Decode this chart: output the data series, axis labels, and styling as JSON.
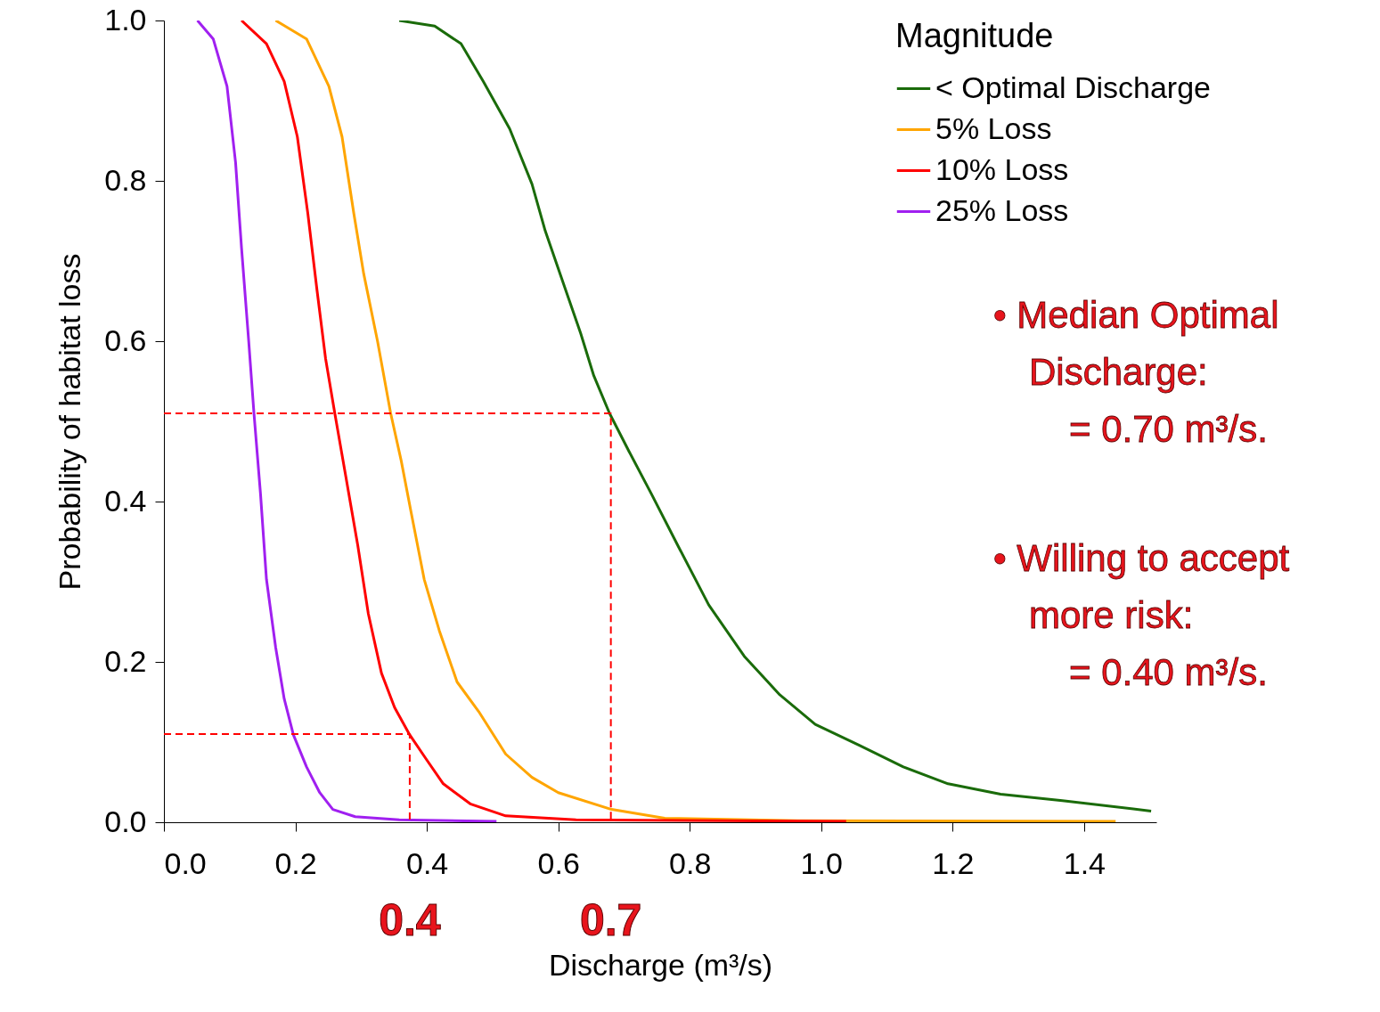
{
  "chart_data": {
    "type": "line",
    "xlabel": "Discharge (m³/s)",
    "ylabel": "Probability of habitat loss",
    "legend_title": "Magnitude",
    "legend": "top right",
    "grid": false,
    "line_style": "solid",
    "xlim": [
      0,
      1.51
    ],
    "ylim": [
      0,
      1
    ],
    "xticks": [
      {
        "value": 0,
        "label": "0.0"
      },
      0.2,
      0.4,
      0.6,
      0.8,
      {
        "value": 1,
        "label": "1.0"
      },
      1.2,
      1.4
    ],
    "yticks": [
      {
        "value": 0,
        "label": "0.0"
      },
      0.2,
      0.4,
      0.6,
      0.8,
      {
        "value": 1,
        "label": "1.0"
      }
    ],
    "series": [
      {
        "name": "< Optimal Discharge",
        "color": "#1a6b0a",
        "x": [
          0.358,
          0.412,
          0.452,
          0.486,
          0.526,
          0.56,
          0.58,
          0.607,
          0.634,
          0.654,
          0.678,
          0.708,
          0.742,
          0.782,
          0.829,
          0.883,
          0.937,
          0.991,
          1.058,
          1.125,
          1.193,
          1.273,
          1.367,
          1.502
        ],
        "values": [
          1.0,
          0.993,
          0.971,
          0.924,
          0.865,
          0.796,
          0.738,
          0.674,
          0.61,
          0.557,
          0.51,
          0.462,
          0.409,
          0.345,
          0.271,
          0.207,
          0.159,
          0.122,
          0.096,
          0.069,
          0.048,
          0.035,
          0.027,
          0.014
        ]
      },
      {
        "name": "5%   Loss",
        "color": "#ffa500",
        "x": [
          0.17,
          0.217,
          0.251,
          0.271,
          0.289,
          0.304,
          0.325,
          0.345,
          0.361,
          0.376,
          0.396,
          0.419,
          0.446,
          0.479,
          0.52,
          0.56,
          0.6,
          0.681,
          0.762,
          0.964,
          1.448
        ],
        "values": [
          1.0,
          0.977,
          0.918,
          0.855,
          0.759,
          0.684,
          0.6,
          0.51,
          0.451,
          0.387,
          0.303,
          0.239,
          0.175,
          0.138,
          0.085,
          0.056,
          0.037,
          0.016,
          0.005,
          0.002,
          0.001
        ]
      },
      {
        "name": "10% Loss",
        "color": "#ff0000",
        "x": [
          0.118,
          0.156,
          0.183,
          0.203,
          0.219,
          0.233,
          0.246,
          0.26,
          0.277,
          0.295,
          0.311,
          0.331,
          0.351,
          0.374,
          0.398,
          0.425,
          0.466,
          0.52,
          0.627,
          1.038
        ],
        "values": [
          1.0,
          0.971,
          0.924,
          0.855,
          0.759,
          0.663,
          0.578,
          0.51,
          0.43,
          0.345,
          0.26,
          0.186,
          0.143,
          0.109,
          0.08,
          0.048,
          0.023,
          0.008,
          0.003,
          0.001
        ]
      },
      {
        "name": "25% Loss",
        "color": "#a020f0",
        "x": [
          0.051,
          0.075,
          0.096,
          0.109,
          0.118,
          0.129,
          0.137,
          0.147,
          0.156,
          0.17,
          0.183,
          0.197,
          0.217,
          0.237,
          0.257,
          0.291,
          0.358,
          0.506
        ],
        "values": [
          1.0,
          0.977,
          0.918,
          0.823,
          0.717,
          0.6,
          0.51,
          0.409,
          0.303,
          0.218,
          0.154,
          0.109,
          0.069,
          0.037,
          0.016,
          0.007,
          0.003,
          0.001
        ]
      },
      {
        "color": "#ff0000",
        "line_style": "dashed",
        "x": [
          0,
          0.68,
          0.68
        ],
        "values": [
          0.51,
          0.51,
          0
        ]
      },
      {
        "color": "#ff0000",
        "line_style": "dashed",
        "x": [
          0,
          0.374,
          0.374
        ],
        "values": [
          0.11,
          0.11,
          0
        ]
      }
    ],
    "annotations": [
      "• Median Optimal",
      "Discharge:",
      "= 0.70 m³/s.",
      "• Willing to accept",
      "more risk:",
      "= 0.40 m³/s.",
      {
        "text": "0.4",
        "x": 0.374,
        "y": 0
      },
      {
        "text": "0.7",
        "x": 0.68,
        "y": 0
      }
    ]
  }
}
